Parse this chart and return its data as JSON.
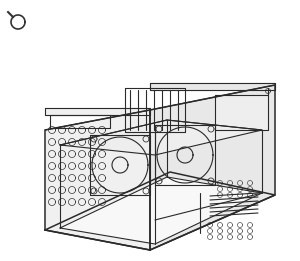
{
  "bg_color": "#ffffff",
  "line_color": "#2a2a2a",
  "line_width": 0.8,
  "fig_width": 3.0,
  "fig_height": 2.61,
  "dpi": 100
}
